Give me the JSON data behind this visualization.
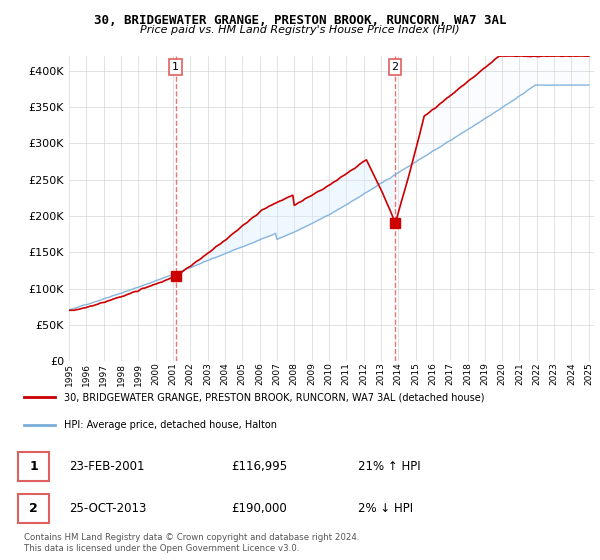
{
  "title": "30, BRIDGEWATER GRANGE, PRESTON BROOK, RUNCORN, WA7 3AL",
  "subtitle": "Price paid vs. HM Land Registry's House Price Index (HPI)",
  "legend_line1": "30, BRIDGEWATER GRANGE, PRESTON BROOK, RUNCORN, WA7 3AL (detached house)",
  "legend_line2": "HPI: Average price, detached house, Halton",
  "annotation1_label": "1",
  "annotation1_date": "23-FEB-2001",
  "annotation1_price": "£116,995",
  "annotation1_hpi": "21% ↑ HPI",
  "annotation2_label": "2",
  "annotation2_date": "25-OCT-2013",
  "annotation2_price": "£190,000",
  "annotation2_hpi": "2% ↓ HPI",
  "footer": "Contains HM Land Registry data © Crown copyright and database right 2024.\nThis data is licensed under the Open Government Licence v3.0.",
  "sale1_year": 2001.15,
  "sale1_value": 116995,
  "sale2_year": 2013.82,
  "sale2_value": 190000,
  "year_start": 1995,
  "year_end": 2025,
  "ylim_min": 0,
  "ylim_max": 420000,
  "red_color": "#cc0000",
  "blue_color": "#7aaddb",
  "fill_color": "#ddeeff",
  "dashed_color": "#e06060"
}
